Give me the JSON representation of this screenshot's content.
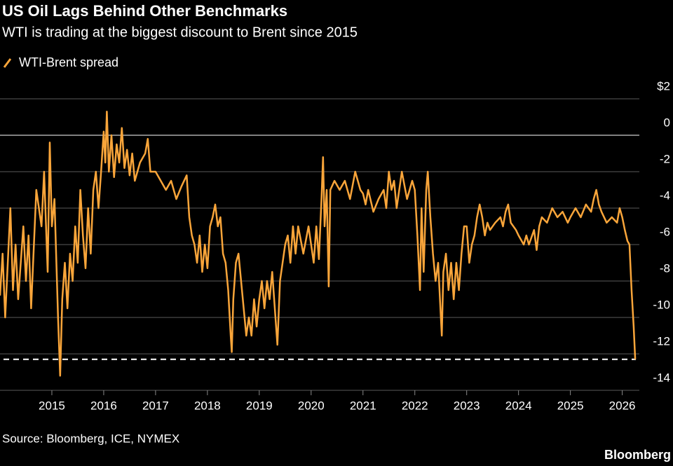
{
  "chart_data": {
    "type": "line",
    "title": "US Oil Lags Behind Other Benchmarks",
    "subtitle": "WTI is trading at the biggest discount to Brent since 2015",
    "source": "Source: Bloomberg, ICE, NYMEX",
    "brand": "Bloomberg",
    "x": [
      2014.0,
      2014.05,
      2014.1,
      2014.15,
      2014.2,
      2014.25,
      2014.3,
      2014.35,
      2014.45,
      2014.5,
      2014.55,
      2014.6,
      2014.7,
      2014.8,
      2014.85,
      2014.92,
      2014.96,
      2015.0,
      2015.05,
      2015.12,
      2015.16,
      2015.2,
      2015.25,
      2015.3,
      2015.35,
      2015.4,
      2015.45,
      2015.5,
      2015.55,
      2015.6,
      2015.65,
      2015.7,
      2015.75,
      2015.8,
      2015.85,
      2015.9,
      2015.95,
      2016.0,
      2016.03,
      2016.06,
      2016.1,
      2016.15,
      2016.2,
      2016.25,
      2016.3,
      2016.35,
      2016.4,
      2016.45,
      2016.5,
      2016.55,
      2016.6,
      2016.7,
      2016.8,
      2016.85,
      2016.9,
      2017.0,
      2017.1,
      2017.2,
      2017.3,
      2017.4,
      2017.5,
      2017.6,
      2017.65,
      2017.7,
      2017.75,
      2017.8,
      2017.85,
      2017.9,
      2017.95,
      2018.0,
      2018.05,
      2018.1,
      2018.15,
      2018.2,
      2018.25,
      2018.3,
      2018.35,
      2018.4,
      2018.45,
      2018.47,
      2018.5,
      2018.55,
      2018.6,
      2018.65,
      2018.7,
      2018.75,
      2018.8,
      2018.85,
      2018.9,
      2018.95,
      2019.0,
      2019.05,
      2019.1,
      2019.15,
      2019.2,
      2019.25,
      2019.3,
      2019.35,
      2019.4,
      2019.45,
      2019.5,
      2019.55,
      2019.6,
      2019.65,
      2019.7,
      2019.75,
      2019.85,
      2019.95,
      2020.0,
      2020.05,
      2020.1,
      2020.15,
      2020.2,
      2020.23,
      2020.26,
      2020.3,
      2020.34,
      2020.37,
      2020.45,
      2020.55,
      2020.65,
      2020.75,
      2020.85,
      2020.95,
      2021.0,
      2021.05,
      2021.1,
      2021.2,
      2021.3,
      2021.4,
      2021.45,
      2021.5,
      2021.55,
      2021.6,
      2021.65,
      2021.7,
      2021.75,
      2021.85,
      2021.95,
      2022.0,
      2022.05,
      2022.1,
      2022.13,
      2022.17,
      2022.22,
      2022.25,
      2022.3,
      2022.35,
      2022.4,
      2022.45,
      2022.52,
      2022.55,
      2022.6,
      2022.65,
      2022.7,
      2022.75,
      2022.8,
      2022.85,
      2022.9,
      2022.95,
      2023.0,
      2023.05,
      2023.1,
      2023.15,
      2023.2,
      2023.25,
      2023.3,
      2023.35,
      2023.4,
      2023.45,
      2023.55,
      2023.65,
      2023.7,
      2023.75,
      2023.8,
      2023.85,
      2023.9,
      2023.95,
      2024.0,
      2024.1,
      2024.15,
      2024.2,
      2024.3,
      2024.35,
      2024.4,
      2024.45,
      2024.55,
      2024.65,
      2024.75,
      2024.85,
      2024.95,
      2025.0,
      2025.1,
      2025.2,
      2025.3,
      2025.4,
      2025.45,
      2025.5,
      2025.55,
      2025.6,
      2025.7,
      2025.8,
      2025.9,
      2025.95,
      2026.0,
      2026.05,
      2026.1,
      2026.14,
      2026.18,
      2026.22,
      2026.25
    ],
    "series": [
      {
        "name": "WTI-Brent spread",
        "color": "#f9a53a",
        "values": [
          -8.8,
          -6.5,
          -10.0,
          -7.0,
          -4.0,
          -8.5,
          -6.0,
          -9.0,
          -5.0,
          -8.0,
          -5.5,
          -9.5,
          -3.0,
          -5.0,
          -2.0,
          -7.5,
          -0.4,
          -5.0,
          -3.5,
          -10.0,
          -13.2,
          -9.0,
          -7.0,
          -9.5,
          -6.5,
          -8.0,
          -5.0,
          -7.0,
          -3.0,
          -5.5,
          -7.3,
          -4.0,
          -6.5,
          -3.0,
          -2.0,
          -4.0,
          -2.0,
          0.2,
          -1.5,
          1.3,
          -2.0,
          0.0,
          -2.3,
          -0.5,
          -1.5,
          0.4,
          -1.8,
          -0.8,
          -2.2,
          -1.0,
          -2.5,
          -1.5,
          -1.0,
          -0.2,
          -2.0,
          -2.0,
          -2.5,
          -3.0,
          -2.5,
          -3.5,
          -2.8,
          -2.2,
          -4.5,
          -5.5,
          -6.0,
          -7.0,
          -5.5,
          -7.5,
          -6.0,
          -7.3,
          -5.0,
          -4.5,
          -3.8,
          -5.0,
          -4.5,
          -6.5,
          -7.0,
          -8.5,
          -11.0,
          -11.9,
          -9.0,
          -7.0,
          -6.5,
          -8.0,
          -9.5,
          -11.0,
          -10.0,
          -11.0,
          -9.0,
          -10.5,
          -9.0,
          -8.0,
          -9.5,
          -8.0,
          -9.0,
          -7.5,
          -9.5,
          -11.5,
          -8.0,
          -7.0,
          -6.0,
          -5.5,
          -7.0,
          -5.0,
          -6.5,
          -5.0,
          -6.5,
          -5.0,
          -6.0,
          -7.0,
          -5.0,
          -6.8,
          -3.5,
          -1.2,
          -5.0,
          -3.0,
          -8.3,
          -3.0,
          -2.5,
          -3.0,
          -2.5,
          -3.5,
          -2.0,
          -3.0,
          -3.2,
          -3.8,
          -3.0,
          -4.2,
          -3.5,
          -3.0,
          -4.0,
          -2.0,
          -3.0,
          -2.5,
          -4.0,
          -3.0,
          -2.0,
          -3.5,
          -2.5,
          -3.0,
          -5.5,
          -8.5,
          -4.0,
          -7.5,
          -3.0,
          -2.0,
          -4.5,
          -6.5,
          -8.0,
          -7.0,
          -11.0,
          -7.5,
          -6.5,
          -8.5,
          -7.0,
          -9.0,
          -7.0,
          -8.5,
          -6.5,
          -5.0,
          -5.0,
          -7.0,
          -6.0,
          -5.5,
          -4.5,
          -3.8,
          -4.5,
          -5.5,
          -4.8,
          -5.2,
          -4.8,
          -4.5,
          -5.0,
          -4.2,
          -3.8,
          -4.8,
          -5.0,
          -5.2,
          -5.5,
          -6.0,
          -5.5,
          -6.0,
          -5.2,
          -6.3,
          -5.0,
          -4.5,
          -4.8,
          -4.0,
          -4.5,
          -4.2,
          -4.8,
          -4.5,
          -4.0,
          -4.5,
          -3.8,
          -4.2,
          -3.5,
          -3.0,
          -3.8,
          -4.2,
          -4.8,
          -4.5,
          -4.8,
          -4.0,
          -4.5,
          -5.2,
          -5.8,
          -6.0,
          -8.5,
          -10.5,
          -12.3
        ]
      }
    ],
    "reference_line": -12.3,
    "xlim": [
      2014,
      2026.33
    ],
    "xticks": [
      2015,
      2016,
      2017,
      2018,
      2019,
      2020,
      2021,
      2022,
      2023,
      2024,
      2025,
      2026
    ],
    "ylim": [
      -14,
      2
    ],
    "yticks": [
      {
        "value": 2,
        "label": "$2"
      },
      0,
      -2,
      -4,
      -6,
      -8,
      -10,
      -12,
      -14
    ],
    "grid": true
  }
}
